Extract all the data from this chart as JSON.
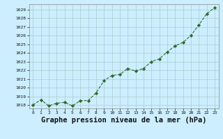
{
  "x": [
    0,
    1,
    2,
    3,
    4,
    5,
    6,
    7,
    8,
    9,
    10,
    11,
    12,
    13,
    14,
    15,
    16,
    17,
    18,
    19,
    20,
    21,
    22,
    23
  ],
  "y": [
    1018.0,
    1018.6,
    1017.9,
    1018.2,
    1018.3,
    1017.9,
    1018.5,
    1018.5,
    1019.4,
    1020.8,
    1021.4,
    1021.5,
    1022.2,
    1021.9,
    1022.2,
    1023.0,
    1023.3,
    1024.1,
    1024.8,
    1025.2,
    1026.0,
    1027.2,
    1028.5,
    1029.2
  ],
  "line_color": "#2d6a2d",
  "marker": "D",
  "marker_size": 2.2,
  "bg_color": "#cceeff",
  "grid_color": "#aacccc",
  "xlabel": "Graphe pression niveau de la mer (hPa)",
  "xlabel_fontsize": 7.5,
  "ylabel_ticks": [
    1018,
    1019,
    1020,
    1021,
    1022,
    1023,
    1024,
    1025,
    1026,
    1027,
    1028,
    1029
  ],
  "ylim": [
    1017.6,
    1029.6
  ],
  "xlim": [
    -0.5,
    23.5
  ],
  "xtick_labels": [
    "0",
    "1",
    "2",
    "3",
    "4",
    "5",
    "6",
    "7",
    "8",
    "9",
    "10",
    "11",
    "12",
    "13",
    "14",
    "15",
    "16",
    "17",
    "18",
    "19",
    "20",
    "21",
    "22",
    "23"
  ]
}
